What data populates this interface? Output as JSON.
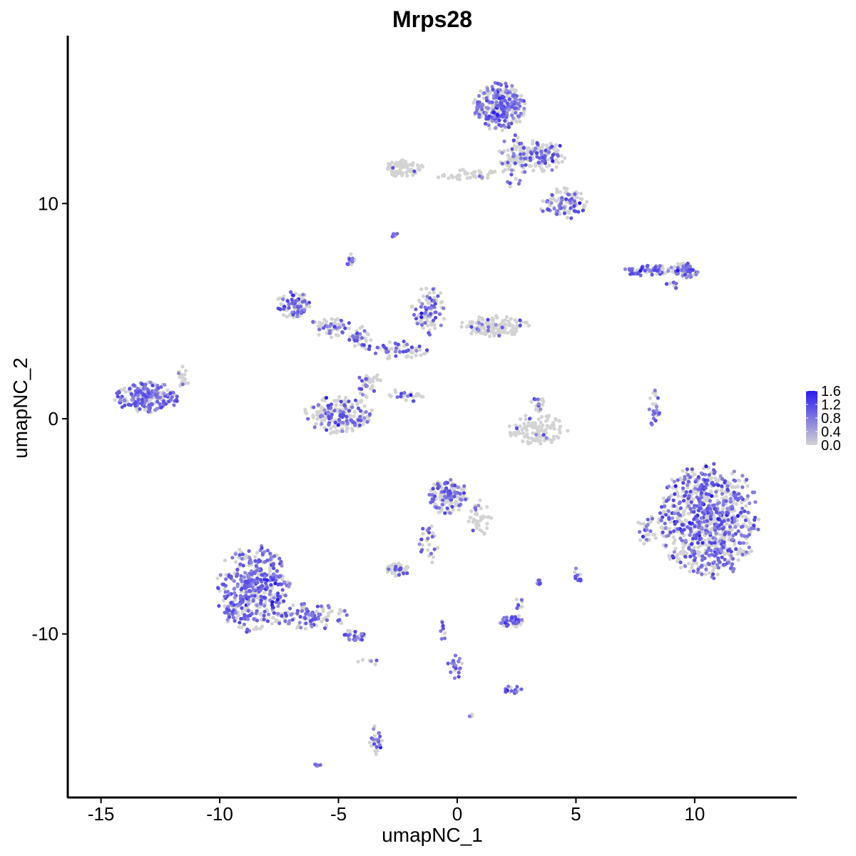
{
  "chart_data": {
    "type": "scatter",
    "title": "Mrps28",
    "xlabel": "umapNC_1",
    "ylabel": "umapNC_2",
    "xlim": [
      -16.4,
      14.3
    ],
    "ylim": [
      -17.6,
      17.8
    ],
    "x_ticks": [
      -15,
      -10,
      -5,
      0,
      5,
      10
    ],
    "x_tick_labels": [
      "-15",
      "-10",
      "-5",
      "0",
      "5",
      "10"
    ],
    "y_ticks": [
      -10,
      0,
      10
    ],
    "y_tick_labels": [
      "-10",
      "0",
      "10"
    ],
    "grid": false,
    "legend": {
      "placement": "right",
      "type": "colorbar",
      "low_color": "#d3d3d3",
      "high_color": "#2a1af0",
      "range": [
        0.0,
        1.6
      ],
      "labels": [
        "1.6",
        "1.2",
        "0.8",
        "0.4",
        "0.0"
      ],
      "label_values": [
        1.6,
        1.2,
        0.8,
        0.4,
        0.0
      ]
    },
    "clusters": [
      {
        "cx": 10.6,
        "cy": -4.7,
        "rx": 2.1,
        "ry": 2.6,
        "n": 900,
        "expr_frac": 0.45
      },
      {
        "cx": -8.6,
        "cy": -7.9,
        "rx": 1.5,
        "ry": 2.0,
        "n": 450,
        "expr_frac": 0.6
      },
      {
        "cx": -6.2,
        "cy": -9.2,
        "rx": 1.6,
        "ry": 0.6,
        "n": 120,
        "expr_frac": 0.5
      },
      {
        "cx": -4.4,
        "cy": -10.1,
        "rx": 0.5,
        "ry": 0.3,
        "n": 30,
        "expr_frac": 0.5
      },
      {
        "cx": -13.1,
        "cy": 1.0,
        "rx": 1.3,
        "ry": 0.7,
        "n": 260,
        "expr_frac": 0.55
      },
      {
        "cx": -11.6,
        "cy": 1.9,
        "rx": 0.3,
        "ry": 0.6,
        "n": 20,
        "expr_frac": 0.1
      },
      {
        "cx": 1.8,
        "cy": 14.5,
        "rx": 1.1,
        "ry": 1.1,
        "n": 300,
        "expr_frac": 0.5
      },
      {
        "cx": 3.4,
        "cy": 12.2,
        "rx": 1.2,
        "ry": 0.7,
        "n": 150,
        "expr_frac": 0.35
      },
      {
        "cx": 4.5,
        "cy": 10.0,
        "rx": 1.0,
        "ry": 0.7,
        "n": 110,
        "expr_frac": 0.4
      },
      {
        "cx": 2.3,
        "cy": 12.0,
        "rx": 0.6,
        "ry": 1.2,
        "n": 60,
        "expr_frac": 0.3
      },
      {
        "cx": -2.2,
        "cy": 11.6,
        "rx": 0.8,
        "ry": 0.4,
        "n": 70,
        "expr_frac": 0.02
      },
      {
        "cx": 0.5,
        "cy": 11.3,
        "rx": 1.4,
        "ry": 0.3,
        "n": 40,
        "expr_frac": 0.05
      },
      {
        "cx": -2.7,
        "cy": 8.5,
        "rx": 0.2,
        "ry": 0.15,
        "n": 10,
        "expr_frac": 0.3
      },
      {
        "cx": -4.5,
        "cy": 7.4,
        "rx": 0.2,
        "ry": 0.25,
        "n": 12,
        "expr_frac": 0.5
      },
      {
        "cx": -6.9,
        "cy": 5.3,
        "rx": 0.7,
        "ry": 0.6,
        "n": 90,
        "expr_frac": 0.5
      },
      {
        "cx": -5.3,
        "cy": 4.3,
        "rx": 0.8,
        "ry": 0.5,
        "n": 60,
        "expr_frac": 0.4
      },
      {
        "cx": -4.1,
        "cy": 3.8,
        "rx": 0.5,
        "ry": 0.5,
        "n": 40,
        "expr_frac": 0.4
      },
      {
        "cx": -1.2,
        "cy": 5.0,
        "rx": 0.7,
        "ry": 1.1,
        "n": 90,
        "expr_frac": 0.35
      },
      {
        "cx": 1.6,
        "cy": 4.3,
        "rx": 1.4,
        "ry": 0.5,
        "n": 140,
        "expr_frac": 0.1
      },
      {
        "cx": -2.5,
        "cy": 3.2,
        "rx": 1.3,
        "ry": 0.4,
        "n": 60,
        "expr_frac": 0.35
      },
      {
        "cx": -3.7,
        "cy": 1.6,
        "rx": 0.5,
        "ry": 0.7,
        "n": 40,
        "expr_frac": 0.3
      },
      {
        "cx": -5.0,
        "cy": 0.2,
        "rx": 1.4,
        "ry": 0.9,
        "n": 200,
        "expr_frac": 0.35
      },
      {
        "cx": -2.0,
        "cy": 1.1,
        "rx": 0.9,
        "ry": 0.3,
        "n": 25,
        "expr_frac": 0.4
      },
      {
        "cx": 3.4,
        "cy": -0.5,
        "rx": 1.2,
        "ry": 0.7,
        "n": 110,
        "expr_frac": 0.05
      },
      {
        "cx": 3.4,
        "cy": 0.6,
        "rx": 0.3,
        "ry": 0.7,
        "n": 20,
        "expr_frac": 0.2
      },
      {
        "cx": 8.3,
        "cy": 0.5,
        "rx": 0.25,
        "ry": 0.8,
        "n": 25,
        "expr_frac": 0.7
      },
      {
        "cx": 8.1,
        "cy": 6.9,
        "rx": 1.1,
        "ry": 0.25,
        "n": 80,
        "expr_frac": 0.6
      },
      {
        "cx": 9.6,
        "cy": 6.9,
        "rx": 0.6,
        "ry": 0.35,
        "n": 60,
        "expr_frac": 0.6
      },
      {
        "cx": 9.0,
        "cy": 6.2,
        "rx": 0.3,
        "ry": 0.3,
        "n": 10,
        "expr_frac": 0.3
      },
      {
        "cx": -0.4,
        "cy": -3.6,
        "rx": 0.8,
        "ry": 0.8,
        "n": 150,
        "expr_frac": 0.4
      },
      {
        "cx": 1.0,
        "cy": -4.6,
        "rx": 0.5,
        "ry": 0.8,
        "n": 40,
        "expr_frac": 0.2
      },
      {
        "cx": -1.2,
        "cy": -5.8,
        "rx": 0.4,
        "ry": 0.9,
        "n": 25,
        "expr_frac": 0.6
      },
      {
        "cx": -2.5,
        "cy": -7.0,
        "rx": 0.5,
        "ry": 0.3,
        "n": 50,
        "expr_frac": 0.3
      },
      {
        "cx": 2.3,
        "cy": -9.4,
        "rx": 0.5,
        "ry": 0.3,
        "n": 50,
        "expr_frac": 0.5
      },
      {
        "cx": 2.6,
        "cy": -8.6,
        "rx": 0.2,
        "ry": 0.25,
        "n": 10,
        "expr_frac": 0.5
      },
      {
        "cx": 2.4,
        "cy": -12.6,
        "rx": 0.4,
        "ry": 0.2,
        "n": 20,
        "expr_frac": 0.5
      },
      {
        "cx": -0.1,
        "cy": -11.5,
        "rx": 0.3,
        "ry": 0.6,
        "n": 20,
        "expr_frac": 0.6
      },
      {
        "cx": -0.6,
        "cy": -9.8,
        "rx": 0.15,
        "ry": 0.6,
        "n": 10,
        "expr_frac": 0.4
      },
      {
        "cx": 5.1,
        "cy": -7.3,
        "rx": 0.2,
        "ry": 0.4,
        "n": 12,
        "expr_frac": 0.5
      },
      {
        "cx": 3.4,
        "cy": -7.6,
        "rx": 0.15,
        "ry": 0.2,
        "n": 8,
        "expr_frac": 0.5
      },
      {
        "cx": -3.4,
        "cy": -14.9,
        "rx": 0.3,
        "ry": 0.7,
        "n": 30,
        "expr_frac": 0.5
      },
      {
        "cx": -5.9,
        "cy": -16.1,
        "rx": 0.15,
        "ry": 0.12,
        "n": 5,
        "expr_frac": 0.8
      },
      {
        "cx": 8.0,
        "cy": -5.2,
        "rx": 0.4,
        "ry": 0.8,
        "n": 30,
        "expr_frac": 0.3
      },
      {
        "cx": 0.6,
        "cy": -13.8,
        "rx": 0.1,
        "ry": 0.1,
        "n": 4,
        "expr_frac": 0.6
      },
      {
        "cx": -3.7,
        "cy": -11.2,
        "rx": 0.5,
        "ry": 0.3,
        "n": 6,
        "expr_frac": 0.1
      }
    ]
  }
}
